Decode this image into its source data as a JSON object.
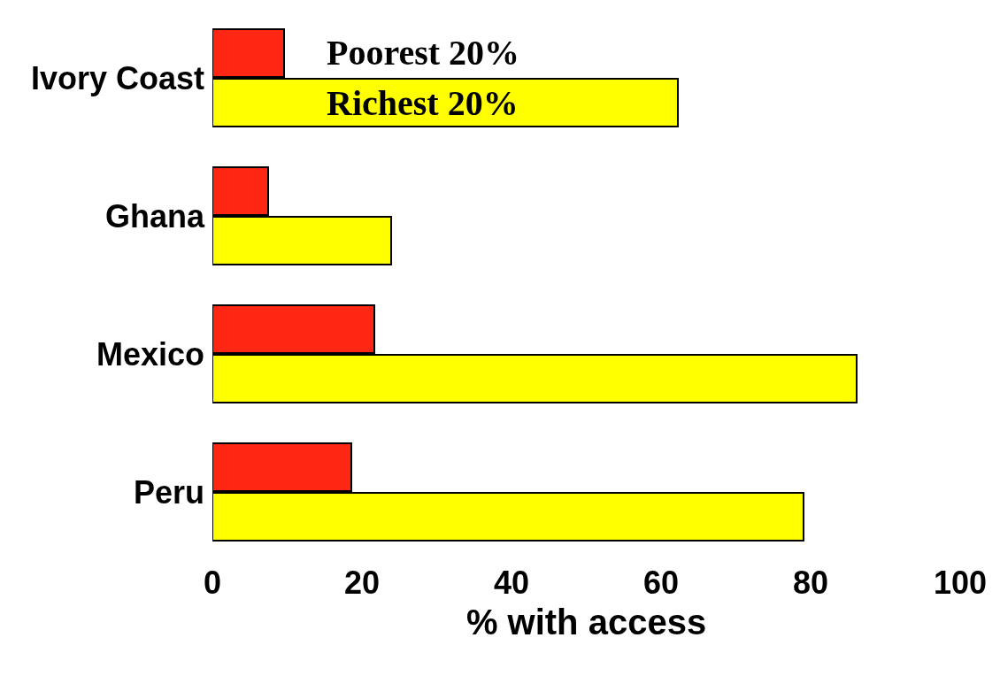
{
  "chart_data": {
    "type": "bar",
    "orientation": "horizontal",
    "categories": [
      "Ivory Coast",
      "Ghana",
      "Mexico",
      "Peru"
    ],
    "series": [
      {
        "name": "Poorest 20%",
        "color": "#ff2614",
        "values": [
          9.6,
          7.4,
          21.6,
          18.6
        ]
      },
      {
        "name": "Richest 20%",
        "color": "#ffff00",
        "values": [
          62.3,
          23.9,
          86.1,
          79.1
        ]
      }
    ],
    "xlabel": "% with access",
    "xlim": [
      0,
      100
    ],
    "xticks": [
      0,
      20,
      40,
      60,
      80,
      100
    ],
    "legend": false
  }
}
